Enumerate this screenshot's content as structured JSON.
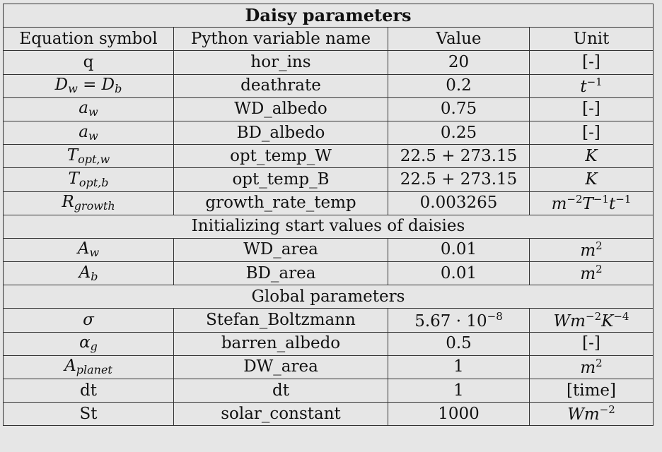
{
  "title": "Daisy parameters",
  "headers": [
    "Equation symbol",
    "Python variable name",
    "Value",
    "Unit"
  ],
  "section_daisy_rows": [
    {
      "symbol_html": "q",
      "symbol_plain": true,
      "name": "hor_ins",
      "value": "20",
      "unit": "[-]"
    },
    {
      "symbol_html": "D<sub>w</sub> = D<sub>b</sub>",
      "name": "deathrate",
      "value": "0.2",
      "unit_html": "<i>t</i><sup>&minus;1</sup>"
    },
    {
      "symbol_html": "a<sub>w</sub>",
      "name": "WD_albedo",
      "value": "0.75",
      "unit": "[-]"
    },
    {
      "symbol_html": "a<sub>w</sub>",
      "name": "BD_albedo",
      "value": "0.25",
      "unit": "[-]"
    },
    {
      "symbol_html": "T<sub>opt,w</sub>",
      "name": "opt_temp_W",
      "value": "22.5 + 273.15",
      "unit_html": "<i>K</i>"
    },
    {
      "symbol_html": "T<sub>opt,b</sub>",
      "name": "opt_temp_B",
      "value": "22.5 + 273.15",
      "unit_html": "<i>K</i>"
    },
    {
      "symbol_html": "R<sub>growth</sub>",
      "name": "growth_rate_temp",
      "value": "0.003265",
      "unit_html": "<i>m</i><sup>&minus;2</sup><i>T</i><sup>&minus;1</sup><i>t</i><sup>&minus;1</sup>"
    }
  ],
  "section_init_title": "Initializing start values of daisies",
  "section_init_rows": [
    {
      "symbol_html": "A<sub>w</sub>",
      "name": "WD_area",
      "value": "0.01",
      "unit_html": "<i>m</i><sup>2</sup>"
    },
    {
      "symbol_html": "A<sub>b</sub>",
      "name": "BD_area",
      "value": "0.01",
      "unit_html": "<i>m</i><sup>2</sup>"
    }
  ],
  "section_global_title": "Global parameters",
  "section_global_rows": [
    {
      "symbol_html": "&sigma;",
      "name": "Stefan_Boltzmann",
      "value_html": "5.67 &middot; 10<sup>&minus;8</sup>",
      "unit_html": "<i>Wm</i><sup>&minus;2</sup><i>K</i><sup>&minus;4</sup>"
    },
    {
      "symbol_html": "&alpha;<sub>g</sub>",
      "name": "barren_albedo",
      "value": "0.5",
      "unit": "[-]"
    },
    {
      "symbol_html": "A<sub>planet</sub>",
      "name": "DW_area",
      "value": "1",
      "unit_html": "<i>m</i><sup>2</sup>"
    },
    {
      "symbol_html": "dt",
      "symbol_plain": true,
      "name": "dt",
      "value": "1",
      "unit": "[time]"
    },
    {
      "symbol_html": "St",
      "symbol_plain": true,
      "name": "solar_constant",
      "value": "1000",
      "unit_html": "<i>Wm</i><sup>&minus;2</sup>"
    }
  ]
}
